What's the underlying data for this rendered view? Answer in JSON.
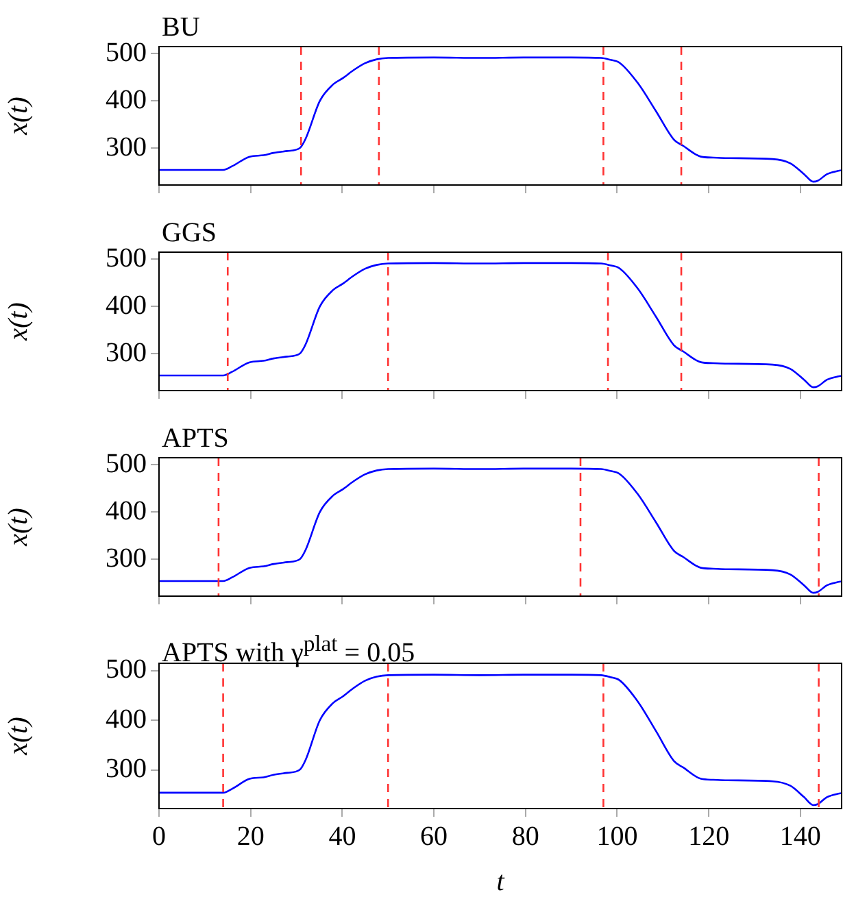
{
  "chart_data": [
    {
      "type": "line",
      "title": "BU",
      "ylabel": "x(t)",
      "xlim": [
        0,
        149
      ],
      "ylim": [
        222,
        515
      ],
      "yticks": [
        300,
        400,
        500
      ],
      "xticks": [
        0,
        20,
        40,
        60,
        80,
        100,
        120,
        140
      ],
      "tick_labels": "y",
      "x": [
        0,
        14,
        16,
        19.8,
        22.8,
        25,
        28,
        30.7,
        32,
        35.1,
        38,
        40.1,
        42.6,
        45,
        47.5,
        50,
        60,
        70,
        80,
        90,
        96.5,
        98.5,
        100.5,
        104.5,
        108.5,
        112.4,
        114.4,
        118.3,
        121,
        124,
        133.9,
        137.8,
        140.8,
        142.8,
        143.8,
        145.8,
        148.3,
        149
      ],
      "series": [
        {
          "color": "#0000ff",
          "values": [
            254,
            254,
            262,
            282,
            285,
            290,
            294,
            300,
            320,
            400,
            435,
            448,
            466,
            480,
            488,
            491,
            492,
            491,
            492,
            492,
            491,
            487,
            481,
            438,
            378,
            318,
            305,
            282,
            280,
            279,
            277,
            268,
            245,
            229,
            231,
            245,
            252,
            253
          ]
        }
      ],
      "ref_lines": [
        {
          "axis": "x",
          "value": 31,
          "color": "#ff3333",
          "line_style": "dashed"
        },
        {
          "axis": "x",
          "value": 48,
          "color": "#ff3333",
          "line_style": "dashed"
        },
        {
          "axis": "x",
          "value": 97,
          "color": "#ff3333",
          "line_style": "dashed"
        },
        {
          "axis": "x",
          "value": 114,
          "color": "#ff3333",
          "line_style": "dashed"
        }
      ]
    },
    {
      "type": "line",
      "title": "GGS",
      "ylabel": "x(t)",
      "xlim": [
        0,
        149
      ],
      "ylim": [
        222,
        515
      ],
      "yticks": [
        300,
        400,
        500
      ],
      "xticks": [
        0,
        20,
        40,
        60,
        80,
        100,
        120,
        140
      ],
      "tick_labels": "y",
      "x": [
        0,
        14,
        16,
        19.8,
        22.8,
        25,
        28,
        30.7,
        32,
        35.1,
        38,
        40.1,
        42.6,
        45,
        47.5,
        50,
        60,
        70,
        80,
        90,
        96.5,
        98.5,
        100.5,
        104.5,
        108.5,
        112.4,
        114.4,
        118.3,
        121,
        124,
        133.9,
        137.8,
        140.8,
        142.8,
        143.8,
        145.8,
        148.3,
        149
      ],
      "series": [
        {
          "color": "#0000ff",
          "values": [
            254,
            254,
            262,
            282,
            285,
            290,
            294,
            300,
            320,
            400,
            435,
            448,
            466,
            480,
            488,
            491,
            492,
            491,
            492,
            492,
            491,
            487,
            481,
            438,
            378,
            318,
            305,
            282,
            280,
            279,
            277,
            268,
            245,
            229,
            231,
            245,
            252,
            253
          ]
        }
      ],
      "ref_lines": [
        {
          "axis": "x",
          "value": 15,
          "color": "#ff3333",
          "line_style": "dashed"
        },
        {
          "axis": "x",
          "value": 50,
          "color": "#ff3333",
          "line_style": "dashed"
        },
        {
          "axis": "x",
          "value": 98,
          "color": "#ff3333",
          "line_style": "dashed"
        },
        {
          "axis": "x",
          "value": 114,
          "color": "#ff3333",
          "line_style": "dashed"
        }
      ]
    },
    {
      "type": "line",
      "title": "APTS",
      "ylabel": "x(t)",
      "xlim": [
        0,
        149
      ],
      "ylim": [
        222,
        515
      ],
      "yticks": [
        300,
        400,
        500
      ],
      "xticks": [
        0,
        20,
        40,
        60,
        80,
        100,
        120,
        140
      ],
      "tick_labels": "y",
      "x": [
        0,
        14,
        16,
        19.8,
        22.8,
        25,
        28,
        30.7,
        32,
        35.1,
        38,
        40.1,
        42.6,
        45,
        47.5,
        50,
        60,
        70,
        80,
        90,
        96.5,
        98.5,
        100.5,
        104.5,
        108.5,
        112.4,
        114.4,
        118.3,
        121,
        124,
        133.9,
        137.8,
        140.8,
        142.8,
        143.8,
        145.8,
        148.3,
        149
      ],
      "series": [
        {
          "color": "#0000ff",
          "values": [
            254,
            254,
            262,
            282,
            285,
            290,
            294,
            300,
            320,
            400,
            435,
            448,
            466,
            480,
            488,
            491,
            492,
            491,
            492,
            492,
            491,
            487,
            481,
            438,
            378,
            318,
            305,
            282,
            280,
            279,
            277,
            268,
            245,
            229,
            231,
            245,
            252,
            253
          ]
        }
      ],
      "ref_lines": [
        {
          "axis": "x",
          "value": 13,
          "color": "#ff3333",
          "line_style": "dashed"
        },
        {
          "axis": "x",
          "value": 92,
          "color": "#ff3333",
          "line_style": "dashed"
        },
        {
          "axis": "x",
          "value": 144,
          "color": "#ff3333",
          "line_style": "dashed"
        }
      ]
    },
    {
      "type": "line",
      "title": "APTS with γ$^{plat}$ = 0.05",
      "xlabel": "t",
      "ylabel": "x(t)",
      "xlim": [
        0,
        149
      ],
      "ylim": [
        222,
        515
      ],
      "yticks": [
        300,
        400,
        500
      ],
      "xticks": [
        0,
        20,
        40,
        60,
        80,
        100,
        120,
        140
      ],
      "x": [
        0,
        14,
        16,
        19.8,
        22.8,
        25,
        28,
        30.7,
        32,
        35.1,
        38,
        40.1,
        42.6,
        45,
        47.5,
        50,
        60,
        70,
        80,
        90,
        96.5,
        98.5,
        100.5,
        104.5,
        108.5,
        112.4,
        114.4,
        118.3,
        121,
        124,
        133.9,
        137.8,
        140.8,
        142.8,
        143.8,
        145.8,
        148.3,
        149
      ],
      "series": [
        {
          "color": "#0000ff",
          "values": [
            254,
            254,
            262,
            282,
            285,
            290,
            294,
            300,
            320,
            400,
            435,
            448,
            466,
            480,
            488,
            491,
            492,
            491,
            492,
            492,
            491,
            487,
            481,
            438,
            378,
            318,
            305,
            282,
            280,
            279,
            277,
            268,
            245,
            229,
            231,
            245,
            252,
            253
          ]
        }
      ],
      "ref_lines": [
        {
          "axis": "x",
          "value": 14,
          "color": "#ff3333",
          "line_style": "dashed"
        },
        {
          "axis": "x",
          "value": 50,
          "color": "#ff3333",
          "line_style": "dashed"
        },
        {
          "axis": "x",
          "value": 97,
          "color": "#ff3333",
          "line_style": "dashed"
        },
        {
          "axis": "x",
          "value": 144,
          "color": "#ff3333",
          "line_style": "dashed"
        }
      ]
    }
  ]
}
